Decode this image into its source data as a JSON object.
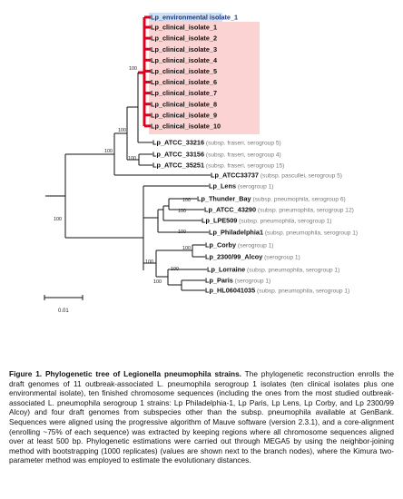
{
  "tree": {
    "leaves": [
      {
        "label": "Lp_environmental isolate_1",
        "note": "",
        "highlight": "blue"
      },
      {
        "label": "Lp_clinical_isolate_1",
        "note": "",
        "highlight": "red"
      },
      {
        "label": "Lp_clinical_isolate_2",
        "note": "",
        "highlight": "red"
      },
      {
        "label": "Lp_clinical_isolate_3",
        "note": "",
        "highlight": "red"
      },
      {
        "label": "Lp_clinical_isolate_4",
        "note": "",
        "highlight": "red"
      },
      {
        "label": "Lp_clinical_isolate_5",
        "note": "",
        "highlight": "red"
      },
      {
        "label": "Lp_clinical_isolate_6",
        "note": "",
        "highlight": "red"
      },
      {
        "label": "Lp_clinical_isolate_7",
        "note": "",
        "highlight": "red"
      },
      {
        "label": "Lp_clinical_isolate_8",
        "note": "",
        "highlight": "red"
      },
      {
        "label": "Lp_clinical_isolate_9",
        "note": "",
        "highlight": "red"
      },
      {
        "label": "Lp_clinical_isolate_10",
        "note": "",
        "highlight": "red"
      },
      {
        "label": "Lp_ATCC_33216",
        "note": "(subsp. fraseri, serogroup 5)",
        "highlight": ""
      },
      {
        "label": "Lp_ATCC_33156",
        "note": "(subsp. fraseri, serogroup 4)",
        "highlight": ""
      },
      {
        "label": "Lp_ATCC_35251",
        "note": "(subsp. fraseri, serogroup 15)",
        "highlight": ""
      },
      {
        "label": "Lp_ATCC33737",
        "note": "(subsp. pascullei, serogroup 5)",
        "highlight": ""
      },
      {
        "label": "Lp_Lens",
        "note": "(serogroup 1)",
        "highlight": ""
      },
      {
        "label": "Lp_Thunder_Bay",
        "note": "(subsp. pneumophila, serogroup 6)",
        "highlight": ""
      },
      {
        "label": "Lp_ATCC_43290",
        "note": "(subsp. pneumophila, serogroup 12)",
        "highlight": ""
      },
      {
        "label": "Lp_LPE509",
        "note": "(subsp. pneumophila, serogroup 1)",
        "highlight": ""
      },
      {
        "label": "Lp_Philadelphia1",
        "note": "(subsp. pneumophila, serogroup 1)",
        "highlight": ""
      },
      {
        "label": "Lp_Corby",
        "note": "(serogroup 1)",
        "highlight": ""
      },
      {
        "label": "Lp_2300/99_Alcoy",
        "note": "(serogroup 1)",
        "highlight": ""
      },
      {
        "label": "Lp_Lorraine",
        "note": "(subsp. pneumophila, serogroup 1)",
        "highlight": ""
      },
      {
        "label": "Lp_Paris",
        "note": "(serogroup 1)",
        "highlight": ""
      },
      {
        "label": "Lp_HL06041035",
        "note": "(subsp. pneumophila, serogroup 1)",
        "highlight": ""
      }
    ],
    "bootstrap": [
      "100",
      "100",
      "100",
      "100",
      "100",
      "100",
      "100",
      "100",
      "100",
      "100",
      "100",
      "100"
    ],
    "scale_label": "0.01",
    "colors": {
      "red_clade": "#e0001b",
      "red_highlight": "#fbd3d3",
      "blue_highlight": "#cfe0f3"
    }
  },
  "caption": {
    "title": "Figure 1. Phylogenetic tree of Legionella pneumophila strains.",
    "text": "The phylogenetic reconstruction enrolls the draft genomes of 11 outbreak-associated L. pneumophila serogroup 1 isolates (ten clinical isolates plus one environmental isolate), ten finished chromosome sequences (including the ones from the most studied outbreak-associated L. pneumophila serogroup 1 strains: Lp Philadelphia-1, Lp Paris, Lp Lens, Lp Corby, and Lp 2300/99 Alcoy) and four draft genomes from subspecies other than the subsp. pneumophila available at GenBank. Sequences were aligned using the progressive algorithm of Mauve software (version 2.3.1), and a core-alignment (enrolling ~75% of each sequence) was extracted by keeping regions where all chromosome sequences aligned over at least 500 bp. Phylogenetic estimations were carried out through MEGA5 by using the neighbor-joining method with bootstrapping (1000 replicates) (values are shown next to the branch nodes), where the Kimura two-parameter method was employed to estimate the evolutionary distances."
  }
}
